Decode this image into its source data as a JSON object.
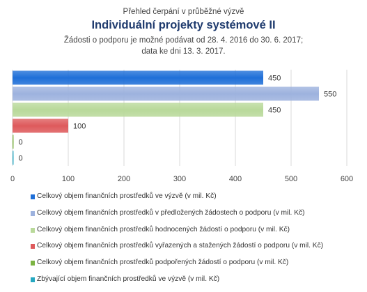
{
  "header": {
    "supertitle": "Přehled čerpání v průběžné výzvě",
    "title": "Individuální projekty systémové II",
    "subtitle_line1": "Žádosti o podporu je možné podávat od 28. 4. 2016 do 30. 6. 2017;",
    "subtitle_line2": "data ke dni 13. 3. 2017."
  },
  "chart_data": {
    "type": "bar",
    "orientation": "horizontal",
    "series": [
      {
        "name": "Celkový objem finančních prostředků ve výzvě (v mil. Kč)",
        "value": 450,
        "label": "450",
        "color": "#1f6fd8"
      },
      {
        "name": "Celkový objem finančních prostředků v předložených žádostech o podporu (v mil. Kč)",
        "value": 550,
        "label": "550",
        "color": "#9db2de"
      },
      {
        "name": "Celkový objem finančních prostředků hodnocených žádostí o podporu (v mil. Kč)",
        "value": 450,
        "label": "450",
        "color": "#b9d99a"
      },
      {
        "name": "Celkový objem finančních prostředků vyřazených a stažených žádostí o podporu (v mil. Kč)",
        "value": 100,
        "label": "100",
        "color": "#de5a5c"
      },
      {
        "name": "Celkový objem finančních prostředků podpořených žádostí o podporu (v mil. Kč)",
        "value": 0,
        "label": "0",
        "color": "#7cb342"
      },
      {
        "name": "Zbývající objem finančních prostředků ve výzvě (v mil. Kč)",
        "value": 0,
        "label": "0",
        "color": "#26a8c1"
      }
    ],
    "xlim": [
      0,
      600
    ],
    "xticks": [
      "0",
      "100",
      "200",
      "300",
      "400",
      "500",
      "600"
    ],
    "grid": true,
    "legend_position": "bottom"
  }
}
